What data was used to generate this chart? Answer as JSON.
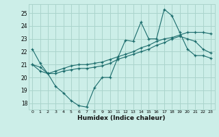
{
  "xlabel": "Humidex (Indice chaleur)",
  "bg_color": "#cceee8",
  "grid_color": "#aad4cc",
  "line_color": "#1a6b6b",
  "xlim": [
    -0.5,
    23.5
  ],
  "ylim": [
    17.5,
    25.7
  ],
  "yticks": [
    18,
    19,
    20,
    21,
    22,
    23,
    24,
    25
  ],
  "xticks": [
    0,
    1,
    2,
    3,
    4,
    5,
    6,
    7,
    8,
    9,
    10,
    11,
    12,
    13,
    14,
    15,
    16,
    17,
    18,
    19,
    20,
    21,
    22,
    23
  ],
  "line1_x": [
    0,
    1,
    2,
    3,
    4,
    5,
    6,
    7,
    8,
    9,
    10,
    11,
    12,
    13,
    14,
    15,
    16,
    17,
    18,
    19,
    20,
    21,
    22,
    23
  ],
  "line1_y": [
    22.2,
    21.1,
    20.3,
    19.3,
    18.8,
    18.2,
    17.8,
    17.7,
    19.2,
    20.0,
    20.0,
    21.5,
    22.9,
    22.8,
    24.3,
    23.0,
    23.0,
    25.3,
    24.8,
    23.5,
    22.2,
    21.7,
    21.7,
    21.5
  ],
  "line2_x": [
    0,
    1,
    2,
    3,
    4,
    5,
    6,
    7,
    8,
    9,
    10,
    11,
    12,
    13,
    14,
    15,
    16,
    17,
    18,
    19,
    20,
    21,
    22,
    23
  ],
  "line2_y": [
    21.0,
    20.8,
    20.3,
    20.3,
    20.5,
    20.6,
    20.7,
    20.7,
    20.8,
    20.9,
    21.1,
    21.4,
    21.6,
    21.8,
    22.0,
    22.2,
    22.5,
    22.7,
    23.0,
    23.2,
    23.0,
    22.8,
    22.2,
    21.9
  ],
  "line3_x": [
    0,
    1,
    2,
    3,
    4,
    5,
    6,
    7,
    8,
    9,
    10,
    11,
    12,
    13,
    14,
    15,
    16,
    17,
    18,
    19,
    20,
    21,
    22,
    23
  ],
  "line3_y": [
    21.0,
    20.5,
    20.3,
    20.5,
    20.7,
    20.9,
    21.0,
    21.0,
    21.1,
    21.2,
    21.4,
    21.6,
    21.8,
    22.0,
    22.3,
    22.5,
    22.8,
    23.0,
    23.1,
    23.3,
    23.5,
    23.5,
    23.5,
    23.4
  ]
}
